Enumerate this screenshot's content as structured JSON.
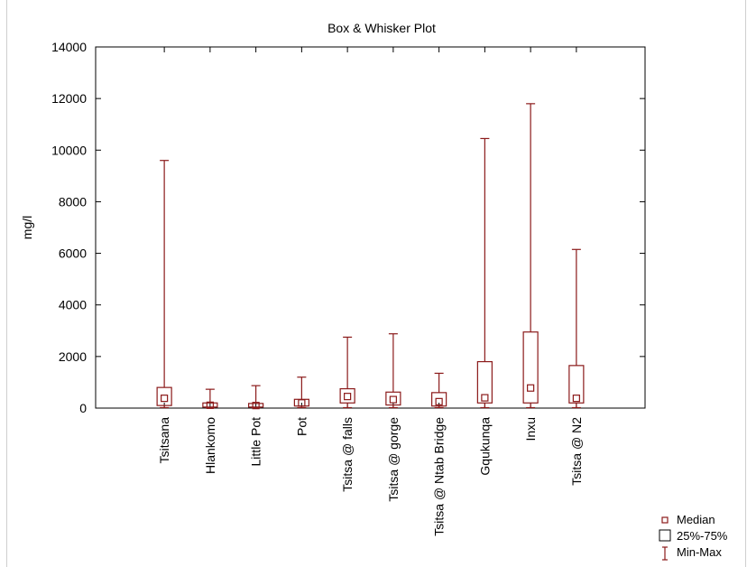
{
  "chart_data": {
    "type": "box",
    "title": "Box & Whisker Plot",
    "xlabel": "",
    "ylabel": "mg/l",
    "ylim": [
      0,
      14000
    ],
    "yticks": [
      0,
      2000,
      4000,
      6000,
      8000,
      10000,
      12000,
      14000
    ],
    "grid": false,
    "legend_position": "bottom-right",
    "colors": {
      "series": "#8b1a1a",
      "axis": "#000000"
    },
    "legend": [
      "Median",
      "25%-75%",
      "Min-Max"
    ],
    "categories": [
      "Tsitsana",
      "Hlankomo",
      "Little Pot",
      "Pot",
      "Tsitsa @ falls",
      "Tsitsa @ gorge",
      "Tsitsa @ Ntab Bridge",
      "Gqukunqa",
      "Inxu",
      "Tsitsa @ N2"
    ],
    "boxes": [
      {
        "min": 0,
        "q1": 100,
        "median": 380,
        "q3": 800,
        "max": 9600
      },
      {
        "min": 0,
        "q1": 40,
        "median": 110,
        "q3": 200,
        "max": 730
      },
      {
        "min": 0,
        "q1": 40,
        "median": 100,
        "q3": 180,
        "max": 870
      },
      {
        "min": 0,
        "q1": 80,
        "median": 200,
        "q3": 340,
        "max": 1200
      },
      {
        "min": 0,
        "q1": 200,
        "median": 450,
        "q3": 750,
        "max": 2750
      },
      {
        "min": 0,
        "q1": 120,
        "median": 330,
        "q3": 620,
        "max": 2880
      },
      {
        "min": 0,
        "q1": 80,
        "median": 250,
        "q3": 600,
        "max": 1350
      },
      {
        "min": 0,
        "q1": 200,
        "median": 400,
        "q3": 1800,
        "max": 10450
      },
      {
        "min": 0,
        "q1": 200,
        "median": 780,
        "q3": 2950,
        "max": 11800
      },
      {
        "min": 0,
        "q1": 200,
        "median": 380,
        "q3": 1650,
        "max": 6150
      }
    ]
  }
}
